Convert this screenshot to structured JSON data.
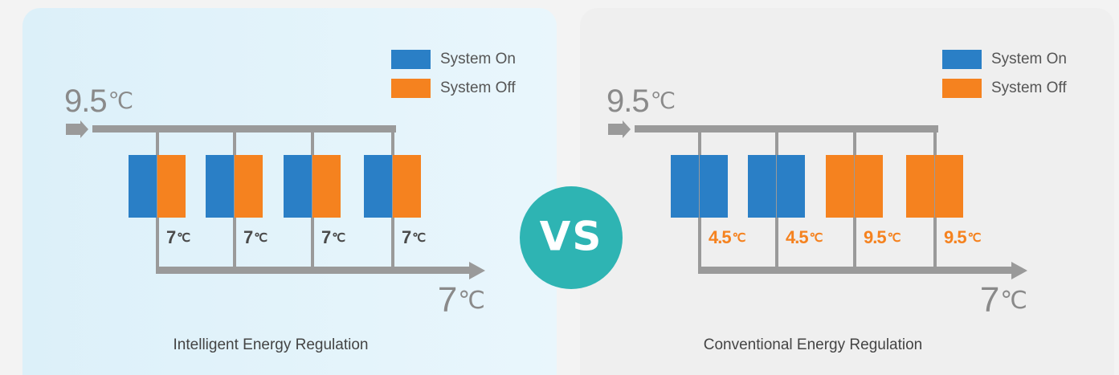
{
  "panels": [
    {
      "legend": [
        {
          "label": "System On",
          "color": "#2a7fc6"
        },
        {
          "label": "System Off",
          "color": "#f5821f"
        }
      ],
      "top": {
        "value": "9.5",
        "unit": "℃"
      },
      "bottom": {
        "value": "7",
        "unit": "℃"
      },
      "blocks": [
        "#2a7fc6",
        "#f5821f",
        "#2a7fc6",
        "#f5821f",
        "#2a7fc6",
        "#f5821f",
        "#2a7fc6",
        "#f5821f"
      ],
      "labels": [
        {
          "value": "7",
          "unit": "℃"
        },
        {
          "value": "7",
          "unit": "℃"
        },
        {
          "value": "7",
          "unit": "℃"
        },
        {
          "value": "7",
          "unit": "℃"
        }
      ],
      "label_color": "#4a4a4a",
      "caption": "Intelligent Energy Regulation"
    },
    {
      "legend": [
        {
          "label": "System On",
          "color": "#2a7fc6"
        },
        {
          "label": "System Off",
          "color": "#f5821f"
        }
      ],
      "top": {
        "value": "9.5",
        "unit": "℃"
      },
      "bottom": {
        "value": "7",
        "unit": "℃"
      },
      "blocks": [
        "#2a7fc6",
        "#2a7fc6",
        "#2a7fc6",
        "#2a7fc6",
        "#f5821f",
        "#f5821f",
        "#f5821f",
        "#f5821f"
      ],
      "labels": [
        {
          "value": "4.5",
          "unit": "℃"
        },
        {
          "value": "4.5",
          "unit": "℃"
        },
        {
          "value": "9.5",
          "unit": "℃"
        },
        {
          "value": "9.5",
          "unit": "℃"
        }
      ],
      "label_color": "#f5821f",
      "caption": "Conventional Energy Regulation"
    }
  ],
  "vs": "VS"
}
